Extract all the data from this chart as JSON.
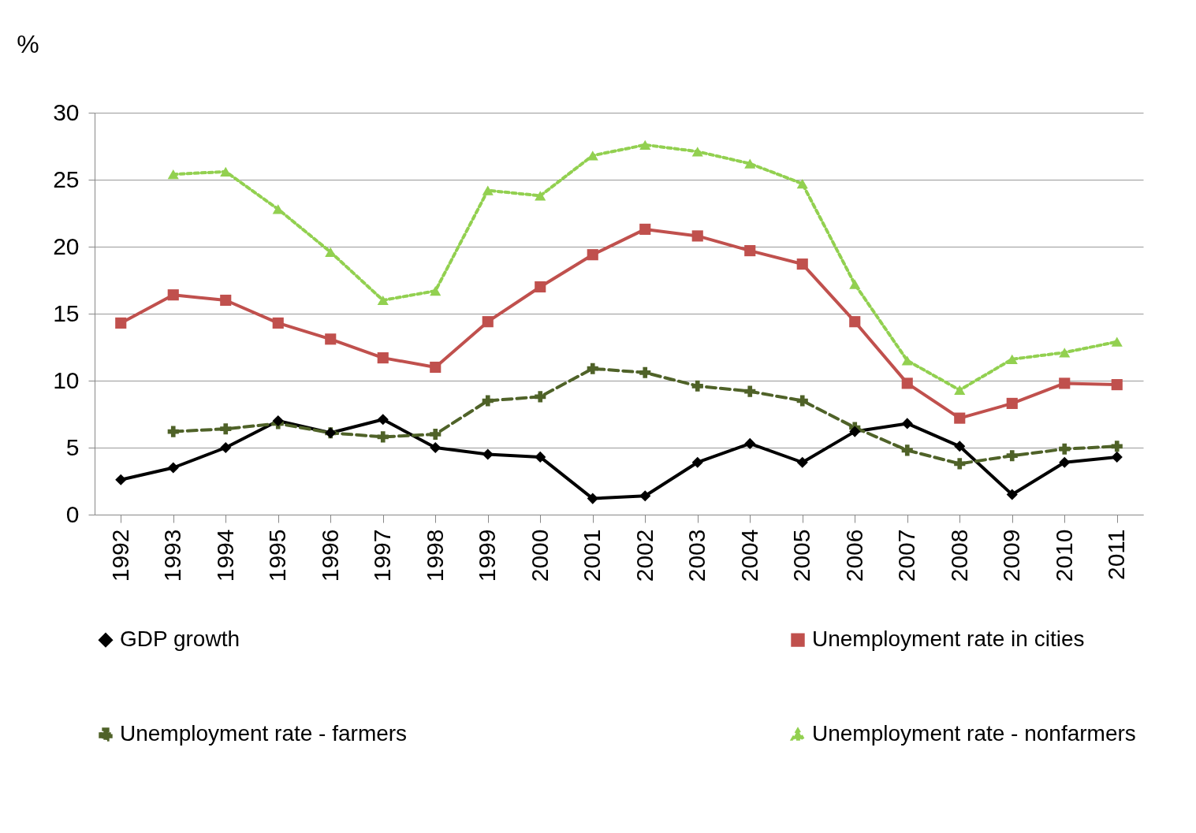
{
  "chart_data": {
    "type": "line",
    "ylabel": "%",
    "categories": [
      "1992",
      "1993",
      "1994",
      "1995",
      "1996",
      "1997",
      "1998",
      "1999",
      "2000",
      "2001",
      "2002",
      "2003",
      "2004",
      "2005",
      "2006",
      "2007",
      "2008",
      "2009",
      "2010",
      "2011"
    ],
    "series": [
      {
        "name": "GDP growth",
        "color": "#000000",
        "marker": "diamond",
        "line_style": "solid",
        "values": [
          2.6,
          3.5,
          5.0,
          7.0,
          6.1,
          7.1,
          5.0,
          4.5,
          4.3,
          1.2,
          1.4,
          3.9,
          5.3,
          3.9,
          6.2,
          6.8,
          5.1,
          1.5,
          3.9,
          4.3
        ]
      },
      {
        "name": "Unemployment rate in cities",
        "color": "#c0504d",
        "marker": "square",
        "line_style": "solid",
        "values": [
          14.3,
          16.4,
          16.0,
          14.3,
          13.1,
          11.7,
          11.0,
          14.4,
          17.0,
          19.4,
          21.3,
          20.8,
          19.7,
          18.7,
          14.4,
          9.8,
          7.2,
          8.3,
          9.8,
          9.7
        ]
      },
      {
        "name": "Unemployment rate - farmers",
        "color": "#4f6228",
        "marker": "cross",
        "line_style": "dashed",
        "values": [
          null,
          6.2,
          6.4,
          6.8,
          6.1,
          5.8,
          6.0,
          8.5,
          8.8,
          10.9,
          10.6,
          9.6,
          9.2,
          8.5,
          6.5,
          4.8,
          3.8,
          4.4,
          4.9,
          5.1
        ]
      },
      {
        "name": "Unemployment rate - nonfarmers",
        "color": "#92d050",
        "marker": "triangle",
        "line_style": "dotted",
        "values": [
          null,
          25.4,
          25.6,
          22.8,
          19.6,
          16.0,
          16.7,
          24.2,
          23.8,
          26.8,
          27.6,
          27.1,
          26.2,
          24.7,
          17.2,
          11.5,
          9.3,
          11.6,
          12.1,
          12.9
        ]
      }
    ],
    "ylim": [
      0,
      30
    ],
    "yticks": [
      0,
      5,
      10,
      15,
      20,
      25,
      30
    ],
    "grid": "y",
    "legend": "bottom"
  }
}
